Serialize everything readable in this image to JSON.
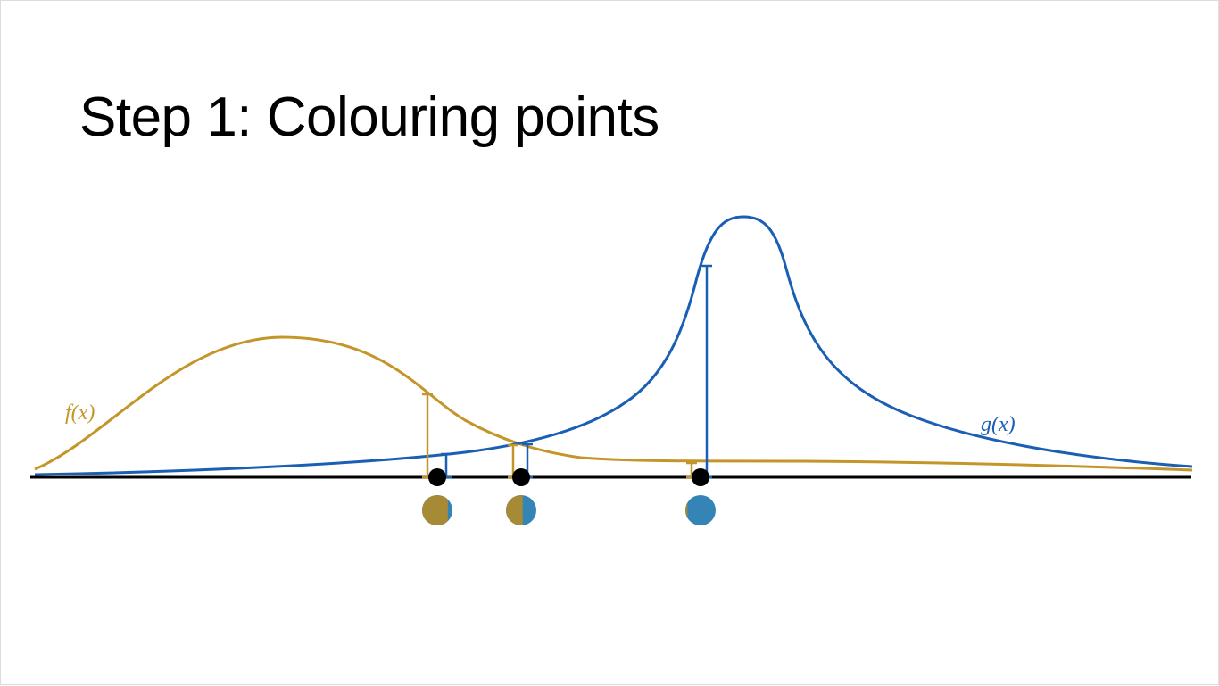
{
  "slide": {
    "title": "Step 1: Colouring points"
  },
  "curves": {
    "f": {
      "label": "f(x)",
      "color": "#c4962a"
    },
    "g": {
      "label": "g(x)",
      "color": "#1a5fb4"
    }
  },
  "axis": {
    "color": "#000000"
  },
  "sample_points": [
    {
      "f_fraction": 0.85,
      "g_fraction": 0.15
    },
    {
      "f_fraction": 0.55,
      "g_fraction": 0.45
    },
    {
      "f_fraction": 0.07,
      "g_fraction": 0.93
    }
  ],
  "point_colors": {
    "f": "#a68a36",
    "g": "#3584b6"
  }
}
